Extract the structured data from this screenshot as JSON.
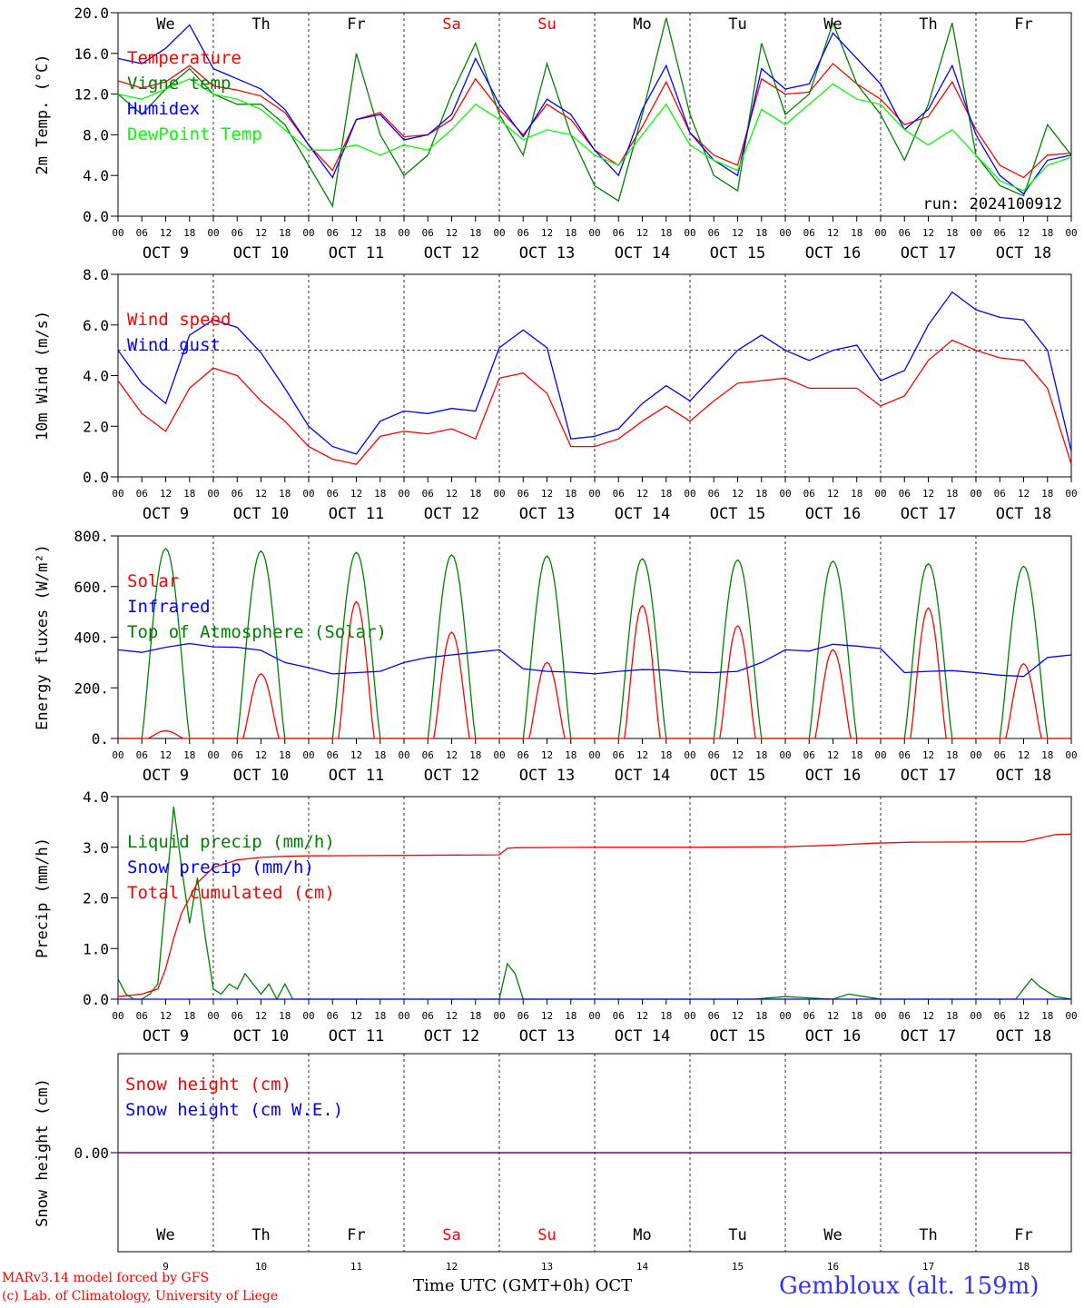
{
  "footer": {
    "model": "MARv3.14 model forced by GFS",
    "copyright": "(c) Lab. of Climatology, University of Liege",
    "xlabel": "Time UTC (GMT+0h) OCT",
    "station": "Gembloux (alt. 159m)"
  },
  "colors": {
    "red": "#ff0000",
    "darkgreen": "#008000",
    "blue": "#0000ff",
    "lightgreen": "#00ff00",
    "purple": "#800080"
  },
  "days": {
    "weekday_labels": [
      "We",
      "Th",
      "Fr",
      "Sa",
      "Su",
      "Mo",
      "Tu",
      "We",
      "Th",
      "Fr"
    ],
    "weekend_indices": [
      3,
      4
    ],
    "date_labels": [
      "OCT  9",
      "OCT 10",
      "OCT 11",
      "OCT 12",
      "OCT 13",
      "OCT 14",
      "OCT 15",
      "OCT 16",
      "OCT 17",
      "OCT 18"
    ],
    "day_numbers": [
      "9",
      "10",
      "11",
      "12",
      "13",
      "14",
      "15",
      "16",
      "17",
      "18"
    ],
    "hour_ticks": [
      "00",
      "06",
      "12",
      "18"
    ]
  },
  "chart_data": [
    {
      "type": "line",
      "ylabel": "2m Temp. (°C)",
      "ylim": [
        0,
        20
      ],
      "yticks": [
        "0.0",
        "4.0",
        "8.0",
        "12.0",
        "16.0",
        "20.0"
      ],
      "annotation": "run: 2024100912",
      "x_hours": [
        0,
        6,
        12,
        18,
        24,
        30,
        36,
        42,
        48,
        54,
        60,
        66,
        72,
        78,
        84,
        90,
        96,
        102,
        108,
        114,
        120,
        126,
        132,
        138,
        144,
        150,
        156,
        162,
        168,
        174,
        180,
        186,
        192,
        198,
        204,
        210,
        216,
        222,
        228,
        234,
        240
      ],
      "series": [
        {
          "name": "Temperature",
          "color": "#ff0000",
          "values": [
            13.3,
            12.6,
            13.2,
            14.8,
            12.8,
            12.4,
            11.8,
            10.2,
            7.0,
            4.5,
            9.5,
            10.2,
            7.8,
            8.0,
            9.5,
            13.5,
            10.5,
            8.0,
            11.0,
            9.5,
            6.5,
            5.0,
            8.8,
            13.2,
            8.2,
            6.0,
            5.0,
            13.5,
            12.0,
            12.2,
            15.0,
            13.0,
            11.5,
            9.0,
            9.8,
            13.2,
            8.5,
            5.0,
            3.8,
            6.0,
            6.2
          ]
        },
        {
          "name": "Vigne temp",
          "color": "#008000",
          "values": [
            12.0,
            10.0,
            12.5,
            14.5,
            12.0,
            11.0,
            11.0,
            9.0,
            5.0,
            1.0,
            16.0,
            8.0,
            4.0,
            6.0,
            12.0,
            17.0,
            10.0,
            6.0,
            15.0,
            8.0,
            3.0,
            1.5,
            10.0,
            19.5,
            10.0,
            4.0,
            2.5,
            17.0,
            10.0,
            12.0,
            19.0,
            13.0,
            10.0,
            5.5,
            11.0,
            19.0,
            6.0,
            3.0,
            2.0,
            9.0,
            6.0
          ]
        },
        {
          "name": "Humidex",
          "color": "#0000ff",
          "values": [
            15.5,
            15.0,
            16.5,
            18.8,
            14.5,
            13.5,
            12.5,
            10.5,
            7.0,
            3.8,
            9.5,
            10.0,
            7.5,
            8.0,
            10.0,
            15.5,
            11.0,
            7.8,
            11.5,
            10.0,
            6.5,
            4.0,
            10.5,
            14.8,
            8.2,
            5.5,
            4.0,
            14.5,
            12.5,
            13.0,
            18.0,
            15.5,
            13.0,
            8.5,
            10.5,
            14.8,
            8.0,
            4.0,
            2.2,
            5.5,
            6.0
          ]
        },
        {
          "name": "DewPoint Temp",
          "color": "#00ff00",
          "values": [
            12.0,
            11.5,
            12.5,
            13.5,
            12.0,
            11.5,
            10.5,
            8.5,
            6.5,
            6.5,
            7.0,
            6.0,
            7.0,
            6.5,
            8.5,
            11.0,
            9.5,
            7.5,
            8.5,
            8.0,
            6.0,
            5.0,
            8.0,
            11.0,
            7.0,
            5.5,
            4.5,
            10.5,
            9.0,
            11.0,
            13.0,
            11.5,
            11.0,
            8.5,
            7.0,
            8.5,
            6.0,
            3.5,
            2.5,
            5.0,
            5.8
          ]
        }
      ]
    },
    {
      "type": "line",
      "ylabel": "10m Wind (m/s)",
      "ylim": [
        0,
        8
      ],
      "yticks": [
        "0.0",
        "2.0",
        "4.0",
        "6.0",
        "8.0"
      ],
      "reference_line": 5.0,
      "x_hours": [
        0,
        6,
        12,
        18,
        24,
        30,
        36,
        42,
        48,
        54,
        60,
        66,
        72,
        78,
        84,
        90,
        96,
        102,
        108,
        114,
        120,
        126,
        132,
        138,
        144,
        150,
        156,
        162,
        168,
        174,
        180,
        186,
        192,
        198,
        204,
        210,
        216,
        222,
        228,
        234,
        240
      ],
      "series": [
        {
          "name": "Wind speed",
          "color": "#ff0000",
          "values": [
            3.8,
            2.5,
            1.8,
            3.5,
            4.3,
            4.0,
            3.0,
            2.2,
            1.2,
            0.7,
            0.5,
            1.6,
            1.8,
            1.7,
            1.9,
            1.5,
            3.9,
            4.1,
            3.3,
            1.2,
            1.2,
            1.5,
            2.2,
            2.8,
            2.2,
            3.0,
            3.7,
            3.8,
            3.9,
            3.5,
            3.5,
            3.5,
            2.8,
            3.2,
            4.6,
            5.4,
            5.0,
            4.7,
            4.6,
            3.5,
            0.5
          ]
        },
        {
          "name": "Wind gust",
          "color": "#0000ff",
          "values": [
            5.0,
            3.7,
            2.9,
            5.6,
            6.2,
            5.9,
            4.9,
            3.5,
            2.0,
            1.2,
            0.9,
            2.2,
            2.6,
            2.5,
            2.7,
            2.6,
            5.1,
            5.8,
            5.1,
            1.5,
            1.6,
            1.9,
            2.9,
            3.6,
            3.0,
            4.0,
            5.0,
            5.6,
            5.0,
            4.6,
            5.0,
            5.2,
            3.8,
            4.2,
            6.0,
            7.3,
            6.6,
            6.3,
            6.2,
            5.0,
            1.0
          ]
        }
      ]
    },
    {
      "type": "line",
      "ylabel": "Energy fluxes (W/m²)",
      "ylim": [
        0,
        800
      ],
      "yticks": [
        "0.",
        "200.",
        "400.",
        "600.",
        "800."
      ],
      "series": [
        {
          "name": "Solar",
          "color": "#ff0000",
          "peaks": [
            30,
            255,
            540,
            420,
            300,
            525,
            445,
            350,
            515,
            295
          ]
        },
        {
          "name": "Infrared",
          "color": "#0000ff",
          "x_hours": [
            0,
            6,
            12,
            18,
            24,
            30,
            36,
            42,
            48,
            54,
            60,
            66,
            72,
            78,
            84,
            90,
            96,
            102,
            108,
            114,
            120,
            126,
            132,
            138,
            144,
            150,
            156,
            162,
            168,
            174,
            180,
            186,
            192,
            198,
            204,
            210,
            216,
            222,
            228,
            234,
            240
          ],
          "values": [
            350,
            340,
            360,
            375,
            362,
            360,
            348,
            300,
            280,
            255,
            260,
            265,
            300,
            320,
            330,
            340,
            350,
            275,
            265,
            262,
            255,
            265,
            272,
            270,
            262,
            260,
            265,
            300,
            350,
            345,
            372,
            365,
            355,
            260,
            265,
            268,
            260,
            250,
            245,
            320,
            330
          ]
        },
        {
          "name": "Top of Atmosphere (Solar)",
          "color": "#008000",
          "peaks": [
            750,
            740,
            735,
            725,
            720,
            710,
            705,
            700,
            690,
            680
          ]
        }
      ]
    },
    {
      "type": "line",
      "ylabel": "Precip (mm/h)",
      "ylim": [
        0,
        4
      ],
      "yticks": [
        "0.0",
        "1.0",
        "2.0",
        "3.0",
        "4.0"
      ],
      "series": [
        {
          "name": "Liquid precip (mm/h)",
          "color": "#008000",
          "x_hours": [
            0,
            2,
            4,
            6,
            8,
            10,
            12,
            14,
            16,
            18,
            20,
            22,
            24,
            26,
            28,
            30,
            32,
            34,
            36,
            38,
            40,
            42,
            44,
            46,
            48,
            60,
            80,
            96,
            98,
            100,
            102,
            104,
            120,
            160,
            168,
            180,
            184,
            188,
            192,
            210,
            226,
            228,
            230,
            232,
            236,
            240
          ],
          "values": [
            0.4,
            0.1,
            0.0,
            0.0,
            0.1,
            0.3,
            2.0,
            3.8,
            2.6,
            1.5,
            2.4,
            1.2,
            0.2,
            0.1,
            0.3,
            0.2,
            0.5,
            0.3,
            0.1,
            0.3,
            0.0,
            0.3,
            0.0,
            0.0,
            0.0,
            0.0,
            0.0,
            0.0,
            0.7,
            0.5,
            0.0,
            0.0,
            0.0,
            0.0,
            0.05,
            0.0,
            0.1,
            0.05,
            0.0,
            0.0,
            0.0,
            0.2,
            0.4,
            0.25,
            0.05,
            0.0
          ]
        },
        {
          "name": "Snow precip (mm/h)",
          "color": "#0000ff",
          "x_hours": [
            0,
            240
          ],
          "values": [
            0.0,
            0.0
          ]
        },
        {
          "name": "Total cumulated (cm)",
          "color": "#ff0000",
          "x_hours": [
            0,
            6,
            10,
            12,
            14,
            16,
            18,
            20,
            24,
            30,
            36,
            42,
            48,
            72,
            96,
            98,
            100,
            120,
            144,
            168,
            180,
            190,
            200,
            228,
            232,
            236,
            240
          ],
          "values": [
            0.05,
            0.1,
            0.2,
            0.6,
            1.2,
            1.7,
            2.0,
            2.3,
            2.6,
            2.75,
            2.8,
            2.82,
            2.83,
            2.84,
            2.85,
            2.98,
            2.99,
            3.0,
            3.0,
            3.01,
            3.04,
            3.08,
            3.1,
            3.11,
            3.18,
            3.25,
            3.26
          ]
        }
      ]
    },
    {
      "type": "line",
      "ylabel": "Snow height (cm)",
      "ytick_label": "0.00",
      "series": [
        {
          "name": "Snow height (cm)",
          "color": "#ff0000",
          "x_hours": [
            0,
            240
          ],
          "values": [
            0.0,
            0.0
          ]
        },
        {
          "name": "Snow height (cm W.E.)",
          "color": "#0000ff",
          "x_hours": [
            0,
            240
          ],
          "values": [
            0.0,
            0.0
          ]
        }
      ]
    }
  ]
}
